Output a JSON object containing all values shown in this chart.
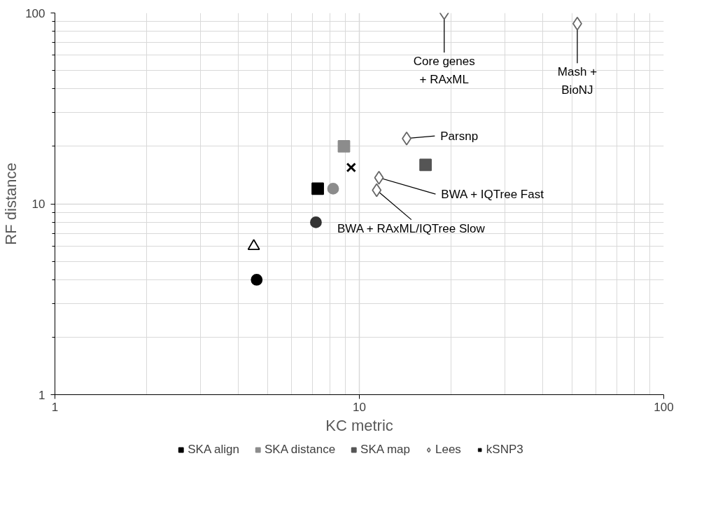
{
  "chart_data": {
    "type": "scatter",
    "xlabel": "KC metric",
    "ylabel": "RF distance",
    "log": "xy",
    "xlim": [
      1,
      100
    ],
    "ylim": [
      1,
      100
    ],
    "xticks": [
      1,
      10,
      100
    ],
    "yticks": [
      1,
      10,
      100
    ],
    "grid": true,
    "legend": "bottom",
    "series": [
      {
        "name": "SKA align",
        "color": "#000000",
        "marker": "square",
        "x": [
          7.3
        ],
        "values": [
          12
        ]
      },
      {
        "name": "SKA distance",
        "color": "#8c8c8c",
        "marker": "square",
        "x": [
          8.9
        ],
        "values": [
          20
        ]
      },
      {
        "name": "SKA map",
        "color": "#555555",
        "marker": "square",
        "x": [
          16.5
        ],
        "values": [
          16
        ]
      },
      {
        "name": "Lees",
        "color": "#666666",
        "marker": "diamond",
        "x": [
          19,
          52,
          14.3,
          11.6,
          11.4
        ],
        "values": [
          100,
          88,
          22,
          13.7,
          11.8
        ]
      },
      {
        "name": "kSNP3",
        "color": "#000000",
        "marker": "cross",
        "x": [
          9.4
        ],
        "values": [
          15.5
        ]
      },
      {
        "color": "#000000",
        "marker": "triangle",
        "x": [
          4.5
        ],
        "values": [
          6
        ]
      },
      {
        "color": "#000000",
        "marker": "circle",
        "x": [
          4.6
        ],
        "values": [
          4
        ]
      },
      {
        "color": "#333333",
        "marker": "circle",
        "x": [
          7.2
        ],
        "values": [
          8
        ]
      },
      {
        "color": "#8c8c8c",
        "marker": "circle",
        "x": [
          8.2
        ],
        "values": [
          12
        ]
      }
    ],
    "annotations": [
      {
        "text": "Core genes\n+ RAxML",
        "x": 19,
        "y": 100
      },
      {
        "text": "Mash +\nBioNJ",
        "x": 52,
        "y": 88
      },
      {
        "text": "Parsnp",
        "x": 14.3,
        "y": 22
      },
      {
        "text": "BWA + IQTree Fast",
        "x": 11.6,
        "y": 13.7
      },
      {
        "text": "BWA + RAxML/IQTree Slow",
        "x": 11.4,
        "y": 11.8
      }
    ]
  }
}
